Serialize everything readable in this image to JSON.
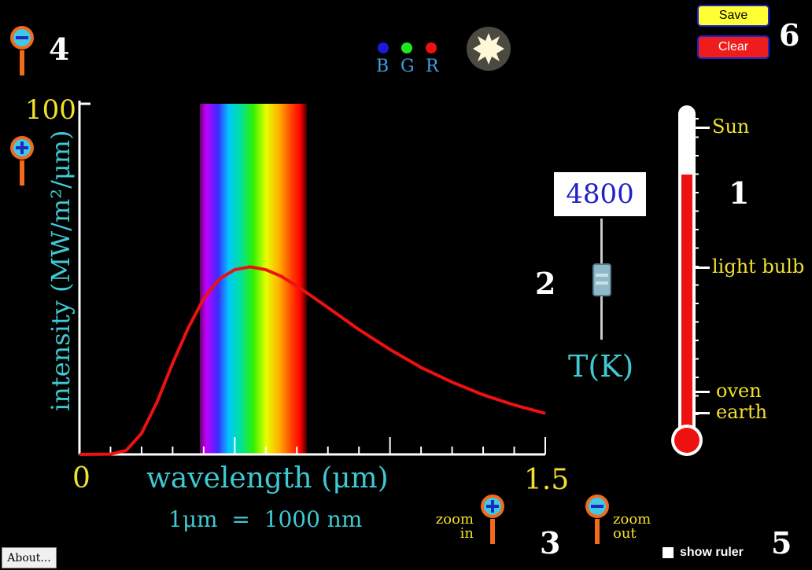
{
  "toolbar": {
    "save_label": "Save",
    "clear_label": "Clear"
  },
  "numbers": {
    "n1": "1",
    "n2": "2",
    "n3": "3",
    "n4": "4",
    "n5": "5",
    "n6": "6"
  },
  "color_indicator": {
    "b": "B",
    "g": "G",
    "r": "R"
  },
  "temperature": {
    "value": "4800",
    "label": "T(K)"
  },
  "thermometer": {
    "labels": [
      "Sun",
      "light bulb",
      "oven",
      "earth"
    ]
  },
  "graph": {
    "y_max_label": "100",
    "y_axis_label": "intensity (MW/m²/μm)",
    "x_min_label": "0",
    "x_max_label": "1.5",
    "x_axis_label": "wavelength (μm)",
    "unit_note": "1μm  =  1000 nm"
  },
  "zoom": {
    "in_label_1": "zoom",
    "in_label_2": "in",
    "out_label_1": "zoom",
    "out_label_2": "out"
  },
  "ruler": {
    "label": "show ruler",
    "checked": false
  },
  "about_label": "About...",
  "colors": {
    "curve": "#ee1111",
    "axis": "#ffffff",
    "accent_cyan": "#3fc9d2",
    "accent_yellow": "#f1e12d"
  },
  "chart_data": {
    "type": "line",
    "title": "",
    "xlabel": "wavelength (μm)",
    "ylabel": "intensity (MW/m²/μm)",
    "xlim": [
      0,
      1.5
    ],
    "ylim": [
      0,
      100
    ],
    "series": [
      {
        "x": [
          0.0,
          0.1,
          0.15,
          0.2,
          0.25,
          0.3,
          0.35,
          0.4,
          0.45,
          0.5,
          0.55,
          0.6,
          0.65,
          0.7,
          0.75,
          0.8,
          0.9,
          1.0,
          1.1,
          1.2,
          1.3,
          1.4,
          1.5
        ],
        "y": [
          0,
          0.1,
          1.1,
          6.0,
          15.0,
          26.0,
          36.0,
          44.5,
          50.0,
          52.7,
          53.5,
          52.7,
          50.8,
          48.0,
          45.0,
          41.9,
          35.6,
          29.9,
          24.8,
          20.6,
          17.0,
          14.1,
          11.7
        ]
      }
    ]
  }
}
